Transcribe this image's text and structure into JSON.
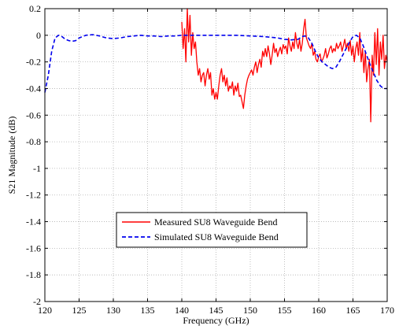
{
  "chart_data": {
    "type": "line",
    "title": "",
    "xlabel": "Frequency (GHz)",
    "ylabel": "S21 Magnitude (dB)",
    "xlim": [
      120,
      170
    ],
    "ylim": [
      -2,
      0.2
    ],
    "xticks": [
      120,
      125,
      130,
      135,
      140,
      145,
      150,
      155,
      160,
      165,
      170
    ],
    "xtick_labels": [
      "120",
      "125",
      "130",
      "135",
      "140",
      "145",
      "150",
      "155",
      "160",
      "165",
      "170"
    ],
    "yticks": [
      0.2,
      0,
      -0.2,
      -0.4,
      -0.6,
      -0.8,
      -1,
      -1.2,
      -1.4,
      -1.6,
      -1.8,
      -2
    ],
    "ytick_labels": [
      "0.2",
      "0",
      "-0.2",
      "-0.4",
      "-0.6",
      "-0.8",
      "-1",
      "-1.2",
      "-1.4",
      "-1.6",
      "-1.8",
      "-2"
    ],
    "grid": true,
    "legend_position": "lower-center",
    "series": [
      {
        "name": "Measured SU8 Waveguide Bend",
        "color": "#ff0000",
        "style": "solid",
        "x": [
          140,
          140.2,
          140.4,
          140.6,
          140.8,
          141.0,
          141.2,
          141.4,
          141.6,
          141.8,
          142.0,
          142.2,
          142.4,
          142.6,
          142.8,
          143.0,
          143.2,
          143.4,
          143.6,
          143.8,
          144.0,
          144.2,
          144.4,
          144.6,
          144.8,
          145.0,
          145.2,
          145.4,
          145.6,
          145.8,
          146.0,
          146.2,
          146.4,
          146.6,
          146.8,
          147.0,
          147.2,
          147.4,
          147.6,
          147.8,
          148.0,
          148.2,
          148.4,
          148.6,
          148.8,
          149.0,
          149.2,
          149.4,
          149.6,
          149.8,
          150.0,
          150.2,
          150.4,
          150.6,
          150.8,
          151.0,
          151.2,
          151.4,
          151.6,
          151.8,
          152.0,
          152.2,
          152.4,
          152.6,
          152.8,
          153.0,
          153.2,
          153.4,
          153.6,
          153.8,
          154.0,
          154.2,
          154.4,
          154.6,
          154.8,
          155.0,
          155.2,
          155.4,
          155.6,
          155.8,
          156.0,
          156.2,
          156.4,
          156.6,
          156.8,
          157.0,
          157.2,
          157.4,
          157.6,
          157.8,
          158.0,
          158.2,
          158.4,
          158.6,
          158.8,
          159.0,
          159.2,
          159.4,
          159.6,
          159.8,
          160.0,
          160.2,
          160.4,
          160.6,
          160.8,
          161.0,
          161.2,
          161.4,
          161.6,
          161.8,
          162.0,
          162.2,
          162.4,
          162.6,
          162.8,
          163.0,
          163.2,
          163.4,
          163.6,
          163.8,
          164.0,
          164.2,
          164.4,
          164.6,
          164.8,
          165.0,
          165.2,
          165.4,
          165.6,
          165.8,
          166.0,
          166.2,
          166.4,
          166.6,
          166.8,
          167.0,
          167.2,
          167.4,
          167.6,
          167.8,
          168.0,
          168.2,
          168.4,
          168.6,
          168.8,
          169.0,
          169.2,
          169.4,
          169.6,
          169.8,
          170.0
        ],
        "y": [
          0.1,
          -0.1,
          0.05,
          -0.2,
          0.2,
          -0.05,
          0.15,
          -0.15,
          0.02,
          -0.1,
          -0.05,
          -0.2,
          -0.3,
          -0.25,
          -0.35,
          -0.3,
          -0.28,
          -0.38,
          -0.3,
          -0.25,
          -0.33,
          -0.28,
          -0.45,
          -0.4,
          -0.48,
          -0.43,
          -0.48,
          -0.38,
          -0.3,
          -0.25,
          -0.35,
          -0.3,
          -0.38,
          -0.32,
          -0.42,
          -0.38,
          -0.4,
          -0.35,
          -0.45,
          -0.38,
          -0.42,
          -0.36,
          -0.46,
          -0.45,
          -0.5,
          -0.55,
          -0.45,
          -0.38,
          -0.33,
          -0.3,
          -0.28,
          -0.26,
          -0.3,
          -0.24,
          -0.2,
          -0.28,
          -0.22,
          -0.18,
          -0.24,
          -0.12,
          -0.16,
          -0.1,
          -0.16,
          -0.08,
          -0.14,
          -0.22,
          -0.15,
          -0.06,
          -0.13,
          -0.1,
          -0.16,
          -0.12,
          -0.09,
          -0.14,
          -0.07,
          -0.1,
          -0.08,
          -0.14,
          -0.02,
          -0.08,
          -0.12,
          -0.05,
          -0.1,
          0.02,
          -0.06,
          -0.1,
          -0.03,
          -0.12,
          -0.06,
          0.05,
          0.12,
          -0.02,
          -0.05,
          -0.08,
          -0.1,
          -0.06,
          -0.15,
          -0.12,
          -0.18,
          -0.2,
          -0.16,
          -0.14,
          -0.2,
          -0.18,
          -0.15,
          -0.1,
          -0.17,
          -0.14,
          -0.1,
          -0.08,
          -0.13,
          -0.1,
          -0.12,
          -0.06,
          -0.1,
          -0.08,
          -0.05,
          -0.12,
          -0.08,
          -0.03,
          -0.1,
          -0.06,
          -0.12,
          -0.04,
          -0.15,
          -0.08,
          -0.2,
          -0.1,
          -0.05,
          -0.15,
          0.02,
          -0.2,
          -0.1,
          -0.28,
          -0.12,
          -0.35,
          -0.25,
          -0.18,
          -0.65,
          -0.15,
          -0.3,
          0.02,
          -0.22,
          0.05,
          -0.3,
          -0.05,
          -0.18,
          0.0,
          -0.25,
          -0.15,
          -0.2
        ]
      },
      {
        "name": "Simulated SU8 Waveguide Bend",
        "color": "#0000ee",
        "style": "dashed",
        "x": [
          120,
          120.5,
          121,
          121.5,
          122,
          122.5,
          123,
          123.5,
          124,
          124.5,
          125,
          126,
          127,
          128,
          129,
          130,
          131,
          132,
          133,
          134,
          135,
          136,
          137,
          138,
          139,
          140,
          142,
          144,
          146,
          148,
          150,
          152,
          154,
          155,
          156,
          157,
          157.5,
          158,
          158.5,
          159,
          159.5,
          160,
          160.5,
          161,
          161.5,
          162,
          162.5,
          163,
          163.5,
          164,
          164.5,
          165,
          165.5,
          166,
          166.5,
          167,
          167.5,
          168,
          168.5,
          169,
          169.5,
          170
        ],
        "y": [
          -0.43,
          -0.3,
          -0.12,
          -0.02,
          0.0,
          -0.01,
          -0.03,
          -0.04,
          -0.045,
          -0.04,
          -0.02,
          0.0,
          0.005,
          -0.005,
          -0.02,
          -0.025,
          -0.02,
          -0.01,
          -0.005,
          0.0,
          -0.005,
          -0.005,
          -0.01,
          -0.005,
          -0.005,
          0.0,
          0.0,
          0.0,
          0.0,
          0.0,
          -0.005,
          -0.01,
          -0.02,
          -0.03,
          -0.035,
          -0.03,
          -0.01,
          -0.005,
          -0.02,
          -0.06,
          -0.12,
          -0.17,
          -0.2,
          -0.22,
          -0.24,
          -0.25,
          -0.24,
          -0.2,
          -0.15,
          -0.1,
          -0.05,
          -0.01,
          0.0,
          -0.02,
          -0.08,
          -0.15,
          -0.22,
          -0.28,
          -0.34,
          -0.38,
          -0.4,
          -0.4
        ]
      }
    ]
  }
}
